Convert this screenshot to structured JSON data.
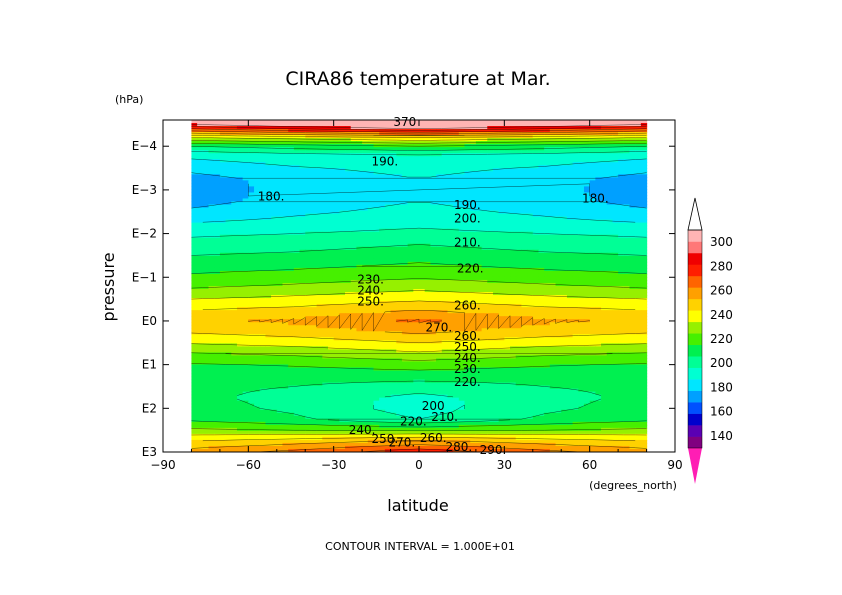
{
  "chart_data": {
    "type": "heatmap",
    "title": "CIRA86 temperature at Mar.",
    "xlabel": "latitude",
    "ylabel": "pressure",
    "y_units": "(hPa)",
    "x_units": "(degrees_north)",
    "xlim": [
      -90,
      90
    ],
    "x_ticks": [
      -90,
      -60,
      -30,
      0,
      30,
      60,
      90
    ],
    "x_tick_labels": [
      "−90",
      "−60",
      "−30",
      "0",
      "30",
      "60",
      "90"
    ],
    "y_scale": "log",
    "ylim_log10": [
      -4.6,
      3
    ],
    "y_ticks_log10": [
      -4,
      -3,
      -2,
      -1,
      0,
      1,
      2,
      3
    ],
    "y_tick_labels": [
      "E−4",
      "E−3",
      "E−2",
      "E−1",
      "E0",
      "E1",
      "E2",
      "E3"
    ],
    "data_lat_range": [
      -80,
      80
    ],
    "contour_interval_text": "CONTOUR INTERVAL = 1.000E+01",
    "colorbar": {
      "labels": [
        "300",
        "280",
        "260",
        "240",
        "220",
        "200",
        "180",
        "160",
        "140"
      ],
      "label_values": [
        300,
        280,
        260,
        240,
        220,
        200,
        180,
        160,
        140
      ],
      "levels": [
        130,
        140,
        150,
        160,
        170,
        180,
        190,
        200,
        210,
        220,
        230,
        240,
        250,
        260,
        270,
        280,
        290,
        300
      ],
      "colors": [
        "#800080",
        "#5a00b4",
        "#0000cd",
        "#0050ff",
        "#00a0ff",
        "#00e6ff",
        "#00ffd2",
        "#00ff96",
        "#00f050",
        "#46f000",
        "#96f000",
        "#ffff00",
        "#ffd200",
        "#ffa000",
        "#ff6400",
        "#ff1e00",
        "#f00000",
        "#ff7878",
        "#ffb4b4"
      ],
      "under_color": "#ff1eb4",
      "over_color": "#ffffff"
    },
    "temperature_profile": {
      "log_pressure": [
        -4.6,
        -4.4,
        -4.2,
        -4.0,
        -3.8,
        -3.5,
        -3.25,
        -3.0,
        -2.75,
        -2.5,
        -2.25,
        -2.0,
        -1.75,
        -1.5,
        -1.25,
        -1.0,
        -0.75,
        -0.5,
        -0.25,
        0.0,
        0.25,
        0.5,
        0.75,
        1.0,
        1.25,
        1.5,
        1.75,
        2.0,
        2.25,
        2.5,
        2.75,
        3.0
      ],
      "T_equator": [
        340,
        300,
        250,
        220,
        200,
        193,
        190,
        189,
        190,
        193,
        197,
        203,
        210,
        216,
        222,
        229,
        238,
        248,
        260,
        272,
        262,
        250,
        238,
        225,
        215,
        205,
        197,
        195,
        200,
        228,
        262,
        287
      ],
      "T_midlat": [
        330,
        290,
        245,
        215,
        197,
        189,
        184,
        183,
        184,
        188,
        193,
        200,
        206,
        212,
        218,
        225,
        233,
        243,
        253,
        262,
        255,
        244,
        232,
        221,
        214,
        210,
        207,
        208,
        212,
        230,
        255,
        273
      ],
      "T_pole": [
        320,
        280,
        240,
        210,
        193,
        183,
        176,
        175,
        176,
        182,
        190,
        198,
        204,
        210,
        216,
        222,
        230,
        240,
        250,
        258,
        251,
        241,
        229,
        219,
        214,
        212,
        212,
        214,
        218,
        232,
        250,
        265
      ]
    },
    "contour_labels": [
      {
        "text": "370",
        "lat": -5,
        "logp": -4.55
      },
      {
        "text": "190.",
        "lat": -12,
        "logp": -3.65
      },
      {
        "text": "180.",
        "lat": -52,
        "logp": -2.85
      },
      {
        "text": "180.",
        "lat": 62,
        "logp": -2.8
      },
      {
        "text": "190.",
        "lat": 17,
        "logp": -2.65
      },
      {
        "text": "200.",
        "lat": 17,
        "logp": -2.35
      },
      {
        "text": "210.",
        "lat": 17,
        "logp": -1.8
      },
      {
        "text": "220.",
        "lat": 18,
        "logp": -1.2
      },
      {
        "text": "230.",
        "lat": -17,
        "logp": -0.95
      },
      {
        "text": "240.",
        "lat": -17,
        "logp": -0.7
      },
      {
        "text": "250.",
        "lat": -17,
        "logp": -0.45
      },
      {
        "text": "260.",
        "lat": 17,
        "logp": -0.35
      },
      {
        "text": "270.",
        "lat": 7,
        "logp": 0.15
      },
      {
        "text": "260.",
        "lat": 17,
        "logp": 0.35
      },
      {
        "text": "250.",
        "lat": 17,
        "logp": 0.6
      },
      {
        "text": "240.",
        "lat": 17,
        "logp": 0.85
      },
      {
        "text": "230.",
        "lat": 17,
        "logp": 1.1
      },
      {
        "text": "220.",
        "lat": 17,
        "logp": 1.4
      },
      {
        "text": "200",
        "lat": 5,
        "logp": 1.95
      },
      {
        "text": "210.",
        "lat": 9,
        "logp": 2.2
      },
      {
        "text": "220.",
        "lat": -2,
        "logp": 2.3
      },
      {
        "text": "240.",
        "lat": -20,
        "logp": 2.5
      },
      {
        "text": "250.",
        "lat": -12,
        "logp": 2.7
      },
      {
        "text": "270.",
        "lat": -6,
        "logp": 2.78
      },
      {
        "text": "260.",
        "lat": 5,
        "logp": 2.68
      },
      {
        "text": "280.",
        "lat": 14,
        "logp": 2.88
      },
      {
        "text": "290.",
        "lat": 26,
        "logp": 2.95
      }
    ]
  }
}
